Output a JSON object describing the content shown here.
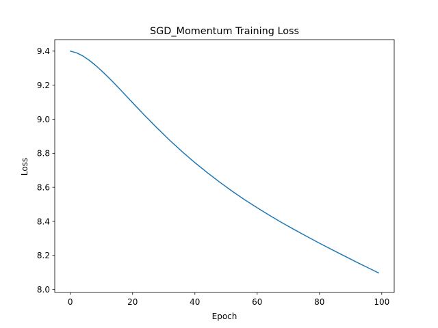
{
  "chart_data": {
    "type": "line",
    "title": "SGD_Momentum Training Loss",
    "xlabel": "Epoch",
    "ylabel": "Loss",
    "xlim": [
      -5,
      104
    ],
    "ylim": [
      7.9825,
      9.4675
    ],
    "xticks": [
      0,
      20,
      40,
      60,
      80,
      100
    ],
    "xtick_labels": [
      "0",
      "20",
      "40",
      "60",
      "80",
      "100"
    ],
    "yticks": [
      8.0,
      8.2,
      8.4,
      8.6,
      8.8,
      9.0,
      9.2,
      9.4
    ],
    "ytick_labels": [
      "8.0",
      "8.2",
      "8.4",
      "8.6",
      "8.8",
      "9.0",
      "9.2",
      "9.4"
    ],
    "grid": false,
    "legend": "none",
    "series": [
      {
        "color": "#1f77b4",
        "x": [
          0,
          2,
          4,
          6,
          8,
          10,
          12,
          14,
          16,
          18,
          20,
          24,
          28,
          32,
          36,
          40,
          44,
          48,
          52,
          56,
          60,
          64,
          68,
          72,
          76,
          80,
          84,
          88,
          92,
          96,
          99
        ],
        "y": [
          9.4,
          9.39,
          9.372,
          9.347,
          9.318,
          9.285,
          9.25,
          9.213,
          9.175,
          9.136,
          9.097,
          9.02,
          8.946,
          8.875,
          8.808,
          8.745,
          8.686,
          8.63,
          8.577,
          8.527,
          8.48,
          8.435,
          8.392,
          8.351,
          8.311,
          8.272,
          8.234,
          8.197,
          8.16,
          8.124,
          8.097
        ]
      }
    ]
  }
}
